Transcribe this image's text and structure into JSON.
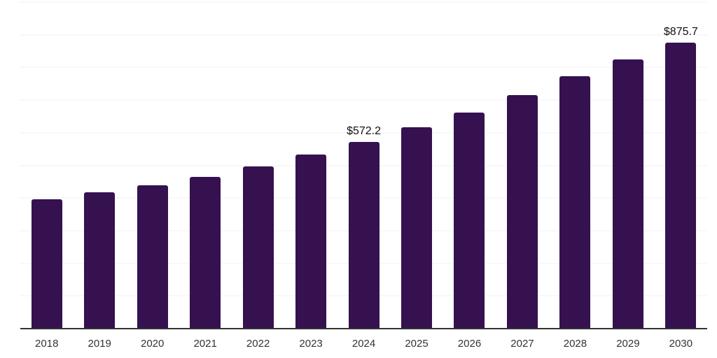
{
  "chart_data": {
    "type": "bar",
    "title": "",
    "xlabel": "",
    "ylabel": "",
    "categories": [
      "2018",
      "2019",
      "2020",
      "2021",
      "2022",
      "2023",
      "2024",
      "2025",
      "2026",
      "2027",
      "2028",
      "2029",
      "2030"
    ],
    "values": [
      397.0,
      417.5,
      439.5,
      465.3,
      497.5,
      532.7,
      572.2,
      616.5,
      662.2,
      716.0,
      773.3,
      824.9,
      875.7
    ],
    "data_labels": [
      "",
      "",
      "",
      "",
      "",
      "",
      "$572.2",
      "",
      "",
      "",
      "",
      "",
      "$875.7"
    ],
    "ylim": [
      0,
      1000
    ],
    "gridline_step": 100,
    "grid": true,
    "legend_position": "none",
    "y_axis_tick_labels_visible": false,
    "colors": {
      "bar": "#351150",
      "gridline": "#f2f2f2",
      "axis": "#333333",
      "tick_label": "#333333",
      "data_label": "#111111",
      "background": "#ffffff"
    }
  }
}
